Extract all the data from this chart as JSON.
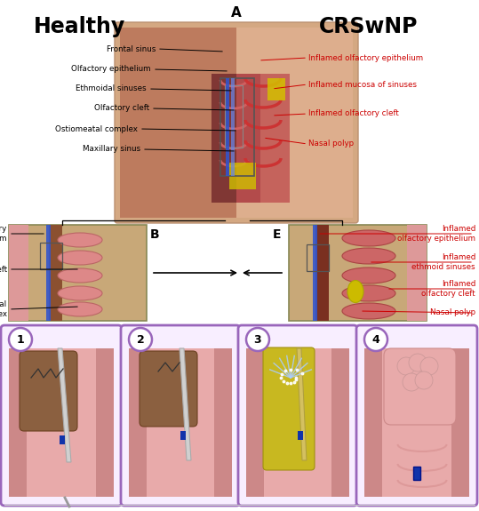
{
  "title_healthy": "Healthy",
  "title_crsnwp": "CRSwNP",
  "label_A": "A",
  "label_B": "B",
  "label_E": "E",
  "left_labels": [
    "Frontal sinus",
    "Olfactory epithelium",
    "Ethmoidal sinuses",
    "Olfactory cleft",
    "Ostiomeatal complex",
    "Maxillary sinus"
  ],
  "right_labels": [
    "Inflamed olfactory epithelium",
    "Inflamed mucosa of sinuses",
    "Inflamed olfactory cleft",
    "Nasal polyp"
  ],
  "bottom_left_labels": [
    "Olfactory\nepithelium",
    "Olfactory cleft",
    "Ostiomeatal\ncomplex"
  ],
  "bottom_right_labels": [
    "Inflamed\nolfactory epithelium",
    "Inflamed\nethmoid sinuses",
    "Inflamed\nolfactory cleft",
    "Nasal polyp"
  ],
  "step_numbers": [
    "1",
    "2",
    "3",
    "4"
  ],
  "bg_color": "#ffffff",
  "inflamed_red": "#cc0000",
  "purple_border": "#9b59b6",
  "skin_left": "#c4856a",
  "skin_right": "#d4a882",
  "nasal_dark": "#7a3535",
  "nasal_inflamed": "#c05555",
  "tissue_pink": "#e8aaaa",
  "tissue_medium": "#d08888",
  "tissue_dark": "#bb6666",
  "tissue_brown": "#8b6040",
  "sinus_yellow": "#d4b800",
  "blue_stripe": "#3355cc",
  "instrument_silver": "#c8c8c8"
}
